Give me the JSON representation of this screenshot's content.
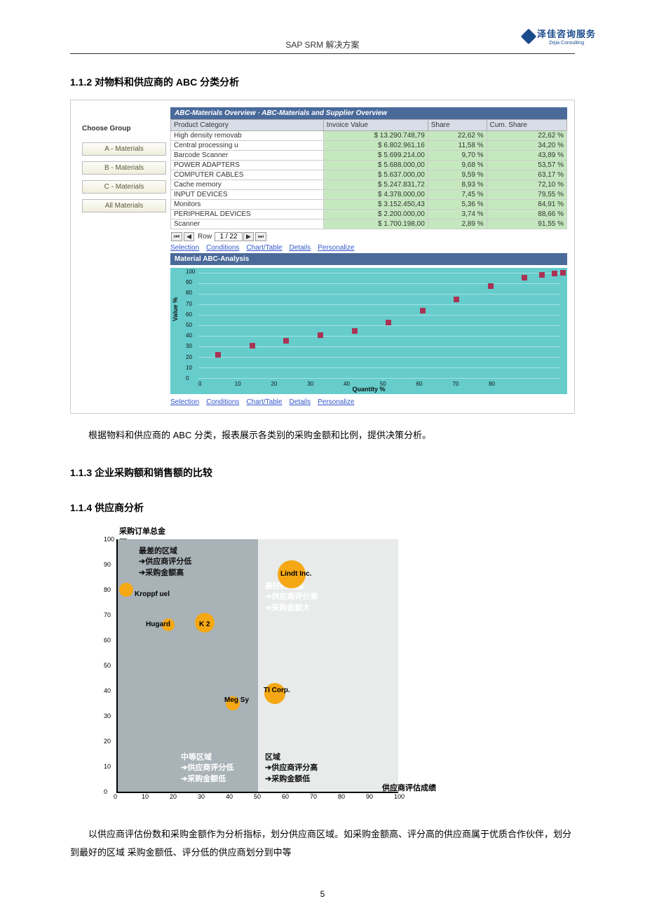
{
  "header": {
    "title": "SAP SRM 解决方案",
    "logo_main": "泽佳咨询服务",
    "logo_sub": "Zejia Consulting"
  },
  "sections": {
    "s112": "1.1.2 对物料和供应商的 ABC 分类分析",
    "s113": "1.1.3 企业采购额和销售额的比较",
    "s114": "1.1.4 供应商分析"
  },
  "para1": "根据物料和供应商的 ABC 分类，报表展示各类别的采购金额和比例，提供决策分析。",
  "para2": "以供应商评估份数和采购金额作为分析指标，划分供应商区域。如采购金额高、评分高的供应商属于优质合作伙伴，划分到最好的区域  采购金额低、评分低的供应商划分到中等",
  "page_number": "5",
  "fig1": {
    "overview_title": "ABC-Materials Overview  ·  ABC-Materials and Supplier Overview",
    "choose_group": "Choose Group",
    "buttons": [
      "A - Materials",
      "B - Materials",
      "C - Materials",
      "All Materials"
    ],
    "columns": [
      "Product Category",
      "Invoice Value",
      "Share",
      "Cum. Share"
    ],
    "rows": [
      [
        "High density removab",
        "$ 13.290.748,79",
        "22,62 %",
        "22,62 %"
      ],
      [
        "Central processing u",
        "$ 6.802.961,16",
        "11,58 %",
        "34,20 %"
      ],
      [
        "Barcode Scanner",
        "$ 5.699.214,00",
        "9,70 %",
        "43,89 %"
      ],
      [
        "POWER ADAPTERS",
        "$ 5.688.000,00",
        "9,68 %",
        "53,57 %"
      ],
      [
        "COMPUTER CABLES",
        "$ 5.637.000,00",
        "9,59 %",
        "63,17 %"
      ],
      [
        "Cache memory",
        "$ 5.247.831,72",
        "8,93 %",
        "72,10 %"
      ],
      [
        "INPUT DEVICES",
        "$ 4.378.000,00",
        "7,45 %",
        "79,55 %"
      ],
      [
        "Monitors",
        "$ 3.152.450,43",
        "5,36 %",
        "84,91 %"
      ],
      [
        "PERIPHERAL DEVICES",
        "$ 2.200.000,00",
        "3,74 %",
        "88,66 %"
      ],
      [
        "Scanner",
        "$ 1.700.198,00",
        "2,89 %",
        "91,55 %"
      ]
    ],
    "row_control": {
      "label": "Row",
      "value": "1 / 22"
    },
    "links": [
      "Selection",
      "Conditions",
      "Chart/Table",
      "Details",
      "Personalize"
    ],
    "chart": {
      "title": "Material ABC-Analysis",
      "ylabel": "Value %",
      "xlabel": "Quantity %",
      "yticks": [
        0,
        10,
        20,
        30,
        40,
        50,
        60,
        70,
        80,
        90,
        100
      ],
      "xticks": [
        0,
        10,
        20,
        30,
        40,
        50,
        60,
        70,
        80
      ],
      "points": [
        {
          "x": 4,
          "y": 20
        },
        {
          "x": 12,
          "y": 28
        },
        {
          "x": 20,
          "y": 33
        },
        {
          "x": 28,
          "y": 38
        },
        {
          "x": 36,
          "y": 42
        },
        {
          "x": 44,
          "y": 50
        },
        {
          "x": 52,
          "y": 61
        },
        {
          "x": 60,
          "y": 72
        },
        {
          "x": 68,
          "y": 84
        },
        {
          "x": 76,
          "y": 92
        },
        {
          "x": 80,
          "y": 95
        },
        {
          "x": 83,
          "y": 96
        },
        {
          "x": 85,
          "y": 97
        }
      ],
      "bar_color": "#aa3355",
      "bg_color": "#66cccc"
    }
  },
  "fig2": {
    "y_axis_title": "采购订单总金\n额",
    "x_axis_title": "供应商评估成绩",
    "xticks": [
      0,
      10,
      20,
      30,
      40,
      50,
      60,
      70,
      80,
      90,
      100
    ],
    "yticks": [
      0,
      10,
      20,
      30,
      40,
      50,
      60,
      70,
      80,
      90,
      100
    ],
    "bubbles": [
      {
        "name": "Kroppf uel",
        "x": 3,
        "y": 80,
        "r": 10,
        "lx": 6,
        "ly": 78
      },
      {
        "name": "Hugard",
        "x": 18,
        "y": 66,
        "r": 9,
        "lx": 10,
        "ly": 66
      },
      {
        "name": "K 2",
        "x": 31,
        "y": 67,
        "r": 14,
        "lx": 29,
        "ly": 66
      },
      {
        "name": "Lindt Inc.",
        "x": 62,
        "y": 86,
        "r": 20,
        "lx": 58,
        "ly": 86
      },
      {
        "name": "Meg Sy",
        "x": 41,
        "y": 35,
        "r": 10,
        "lx": 38,
        "ly": 36
      },
      {
        "name": "TI Corp.",
        "x": 56,
        "y": 39,
        "r": 15,
        "lx": 52,
        "ly": 40
      }
    ],
    "quad_labels": {
      "topleft": {
        "title": "最差的区域",
        "l1": "➔供应商评分低",
        "l2": "➔采购金额高"
      },
      "topright": {
        "title": "最好的范围",
        "l1": "➔供应商评分高",
        "l2": "➔采购金额大"
      },
      "botleft": {
        "title": "中等区域",
        "l1": "➔供应商评分低",
        "l2": "➔采购金额低"
      },
      "botright": {
        "title": "区域",
        "l1": "➔供应商评分高",
        "l2": "➔采购金额低"
      }
    },
    "bubble_color": "#f5a814"
  }
}
